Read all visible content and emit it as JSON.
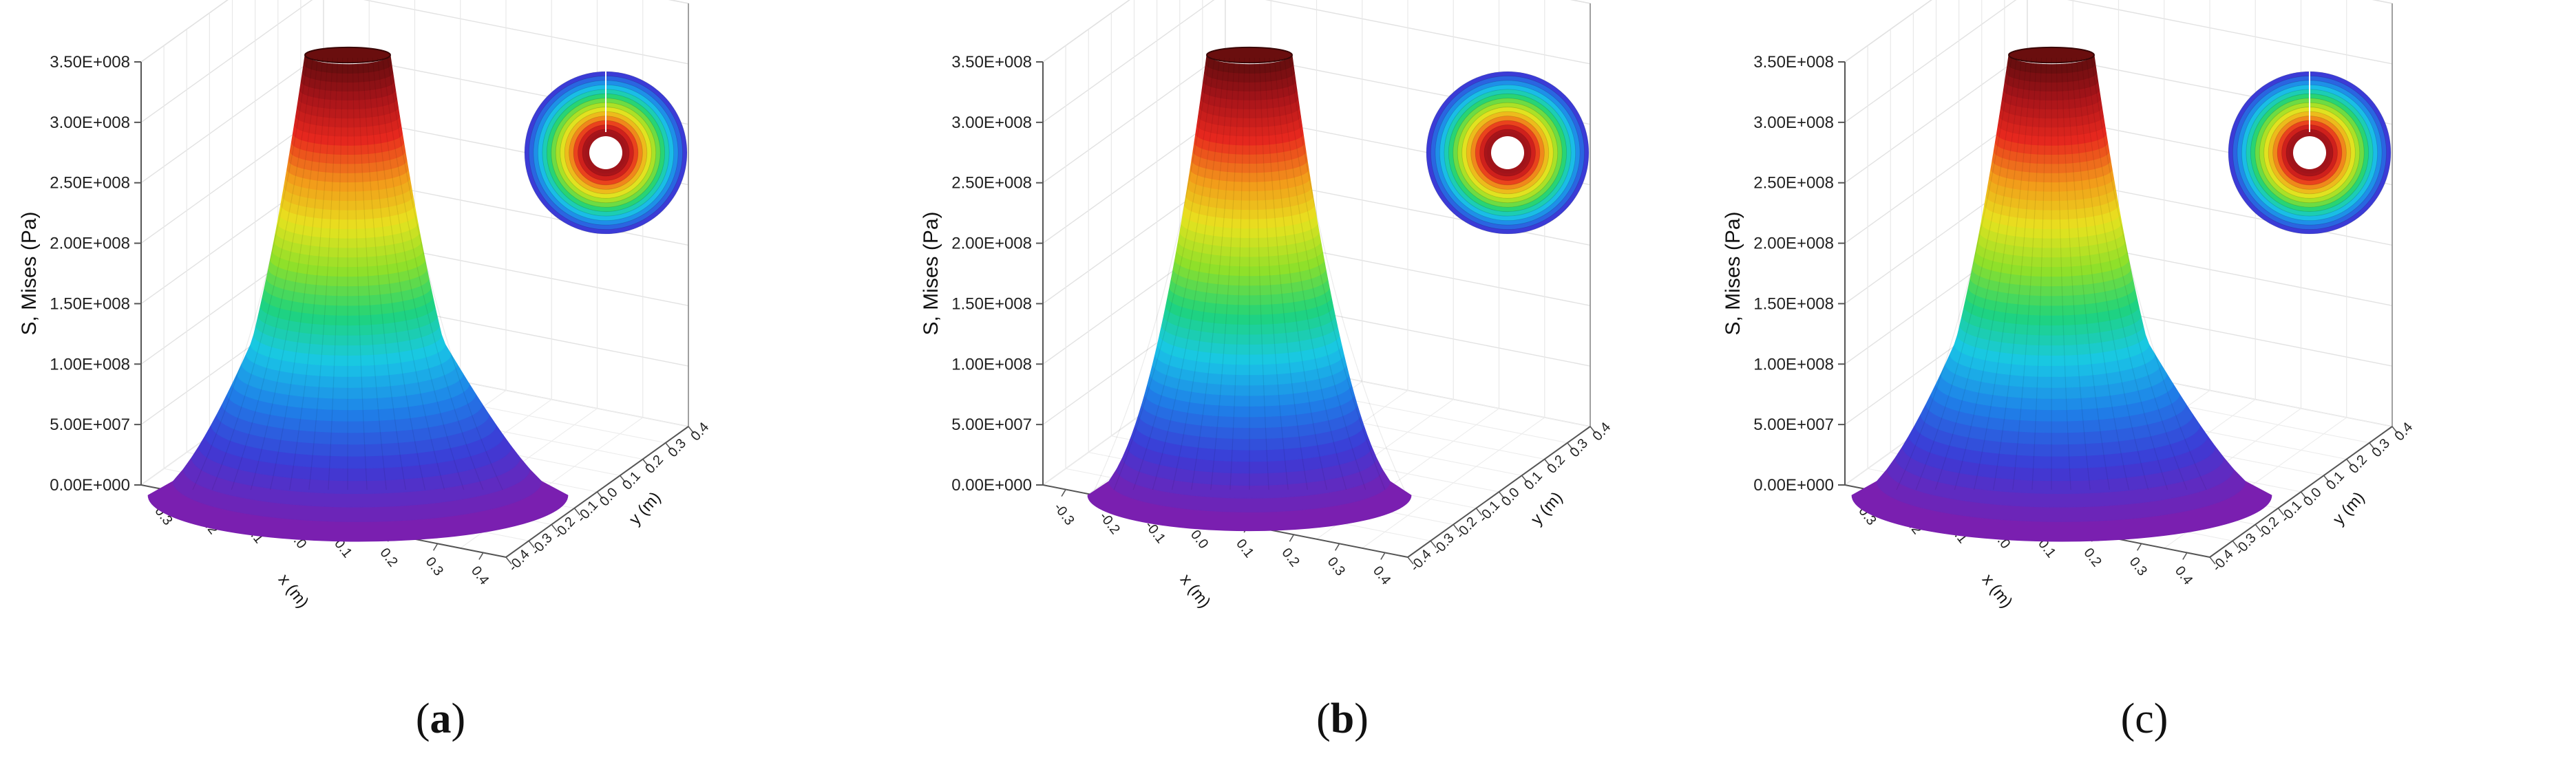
{
  "chart_data": [
    {
      "type": "surface3d",
      "caption": "a",
      "caption_bold": true,
      "zlabel": "S, Mises (Pa)",
      "xlabel": "x (m)",
      "ylabel": "y (m)",
      "z_ticks": [
        "0.00E+000",
        "5.00E+007",
        "1.00E+008",
        "1.50E+008",
        "2.00E+008",
        "2.50E+008",
        "3.00E+008",
        "3.50E+008"
      ],
      "x_ticks": [
        "-0.3",
        "-0.2",
        "-0.1",
        "0.0",
        "0.1",
        "0.2",
        "0.3",
        "0.4"
      ],
      "y_ticks": [
        "0.4",
        "0.3",
        "0.2",
        "0.1",
        "0.0",
        "-0.1",
        "-0.2",
        "-0.3",
        "-0.4"
      ],
      "zlim": [
        0,
        350000000
      ],
      "xlim": [
        -0.4,
        0.4
      ],
      "ylim": [
        -0.4,
        0.4
      ],
      "colormap": [
        "#7a1fb0",
        "#3b3bd6",
        "#1f7fe8",
        "#19c8e6",
        "#1fd37a",
        "#8fe02a",
        "#e8e21f",
        "#f29a1a",
        "#e8281e",
        "#a8141a",
        "#5a0c0c"
      ],
      "shape": "asymmetric",
      "inset": "stress-contour-disc"
    },
    {
      "type": "surface3d",
      "caption": "b",
      "caption_bold": true,
      "zlabel": "S, Mises (Pa)",
      "xlabel": "x (m)",
      "ylabel": "y (m)",
      "z_ticks": [
        "0.00E+000",
        "5.00E+007",
        "1.00E+008",
        "1.50E+008",
        "2.00E+008",
        "2.50E+008",
        "3.00E+008",
        "3.50E+008"
      ],
      "x_ticks": [
        "-0.3",
        "-0.2",
        "-0.1",
        "0.0",
        "0.1",
        "0.2",
        "0.3",
        "0.4"
      ],
      "y_ticks": [
        "0.4",
        "0.3",
        "0.2",
        "0.1",
        "0.0",
        "-0.1",
        "-0.2",
        "-0.3",
        "-0.4"
      ],
      "zlim": [
        0,
        350000000
      ],
      "xlim": [
        -0.4,
        0.4
      ],
      "ylim": [
        -0.4,
        0.4
      ],
      "colormap": [
        "#7a1fb0",
        "#3b3bd6",
        "#1f7fe8",
        "#19c8e6",
        "#1fd37a",
        "#8fe02a",
        "#e8e21f",
        "#f29a1a",
        "#e8281e",
        "#a8141a",
        "#5a0c0c"
      ],
      "shape": "symmetric",
      "inset": "stress-contour-disc"
    },
    {
      "type": "surface3d",
      "caption": "c",
      "caption_bold": false,
      "zlabel": "S, Mises (Pa)",
      "xlabel": "x (m)",
      "ylabel": "y (m)",
      "z_ticks": [
        "0.00E+000",
        "5.00E+007",
        "1.00E+008",
        "1.50E+008",
        "2.00E+008",
        "2.50E+008",
        "3.00E+008",
        "3.50E+008"
      ],
      "x_ticks": [
        "-0.3",
        "-0.2",
        "-0.1",
        "0.0",
        "0.1",
        "0.2",
        "0.3",
        "0.4"
      ],
      "y_ticks": [
        "0.4",
        "0.3",
        "0.2",
        "0.1",
        "0.0",
        "-0.1",
        "-0.2",
        "-0.3",
        "-0.4"
      ],
      "zlim": [
        0,
        350000000
      ],
      "xlim": [
        -0.4,
        0.4
      ],
      "ylim": [
        -0.4,
        0.4
      ],
      "colormap": [
        "#7a1fb0",
        "#3b3bd6",
        "#1f7fe8",
        "#19c8e6",
        "#1fd37a",
        "#8fe02a",
        "#e8e21f",
        "#f29a1a",
        "#e8281e",
        "#a8141a",
        "#5a0c0c"
      ],
      "shape": "asymmetric",
      "inset": "stress-contour-disc"
    }
  ]
}
